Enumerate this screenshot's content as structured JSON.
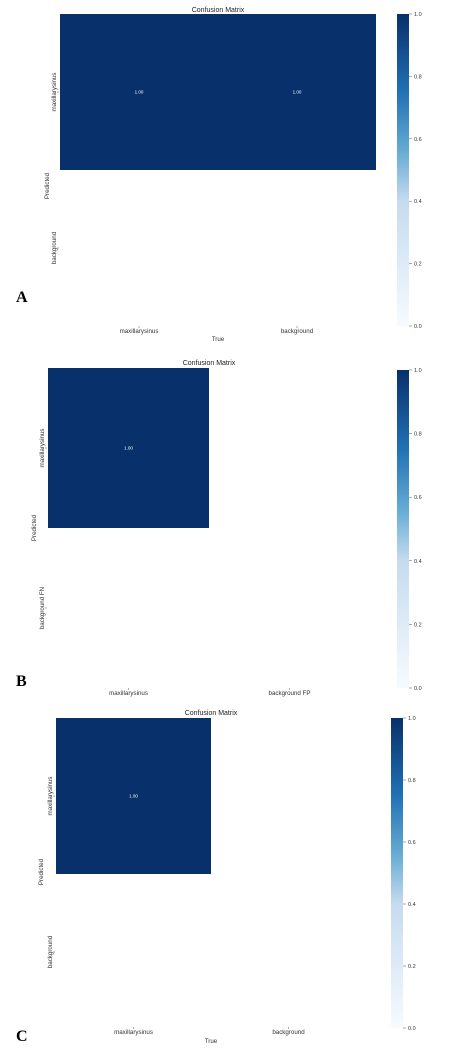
{
  "colors": {
    "max": "#08306b",
    "min": "#f7fbff"
  },
  "chart_data": [
    {
      "panel": "A",
      "type": "heatmap",
      "title": "Confusion Matrix",
      "xlabel": "True",
      "ylabel": "Predicted",
      "x_categories": [
        "maxillarysinus",
        "background"
      ],
      "y_categories": [
        "maxillarysinus",
        "background"
      ],
      "values": [
        [
          1.0,
          1.0
        ],
        [
          null,
          null
        ]
      ],
      "cell_labels": [
        [
          "1.00",
          "1.00"
        ],
        [
          "",
          ""
        ]
      ],
      "colorbar": {
        "range": [
          0,
          1
        ],
        "ticks": [
          "0.0",
          "0.2",
          "0.4",
          "0.6",
          "0.8",
          "1.0"
        ]
      }
    },
    {
      "panel": "B",
      "type": "heatmap",
      "title": "Confusion Matrix",
      "xlabel": "",
      "ylabel": "Predicted",
      "x_categories": [
        "maxillarysinus",
        "background FP"
      ],
      "y_categories": [
        "maxillarysinus",
        "background FN"
      ],
      "values": [
        [
          1.0,
          null
        ],
        [
          null,
          null
        ]
      ],
      "cell_labels": [
        [
          "1.00",
          ""
        ],
        [
          "",
          ""
        ]
      ],
      "colorbar": {
        "range": [
          0,
          1
        ],
        "ticks": [
          "0.0",
          "0.2",
          "0.4",
          "0.6",
          "0.8",
          "1.0"
        ]
      }
    },
    {
      "panel": "C",
      "type": "heatmap",
      "title": "Confusion Matrix",
      "xlabel": "True",
      "ylabel": "Predicted",
      "x_categories": [
        "maxillarysinus",
        "background"
      ],
      "y_categories": [
        "maxillarysinus",
        "background"
      ],
      "values": [
        [
          1.0,
          null
        ],
        [
          null,
          null
        ]
      ],
      "cell_labels": [
        [
          "1.00",
          ""
        ],
        [
          "",
          ""
        ]
      ],
      "colorbar": {
        "range": [
          0,
          1
        ],
        "ticks": [
          "0.0",
          "0.2",
          "0.4",
          "0.6",
          "0.8",
          "1.0"
        ]
      }
    }
  ]
}
